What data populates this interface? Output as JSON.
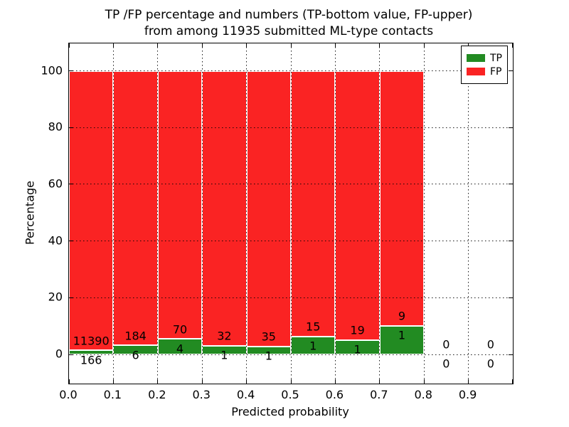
{
  "title": {
    "line1": "TP /FP percentage and numbers (TP-bottom value, FP-upper)",
    "line2": "from among 11935 submitted ML-type contacts"
  },
  "axes": {
    "xlabel": "Predicted probability",
    "ylabel": "Percentage",
    "xtick_labels": [
      "0.0",
      "0.1",
      "0.2",
      "0.3",
      "0.4",
      "0.5",
      "0.6",
      "0.7",
      "0.8",
      "0.9"
    ],
    "xtick_values": [
      0.0,
      0.1,
      0.2,
      0.3,
      0.4,
      0.5,
      0.6,
      0.7,
      0.8,
      0.9
    ],
    "ytick_labels": [
      "0",
      "20",
      "40",
      "60",
      "80",
      "100"
    ],
    "ytick_values": [
      0,
      20,
      40,
      60,
      80,
      100
    ],
    "xlim": [
      0.0,
      1.0
    ],
    "ylim": [
      -10.5,
      110.0
    ],
    "grid": "dotted"
  },
  "legend": {
    "position": "upper-right",
    "entries": [
      {
        "label": "TP",
        "color": "#228B22"
      },
      {
        "label": "FP",
        "color": "#FA2323"
      }
    ]
  },
  "colors": {
    "tp": "#228B22",
    "fp": "#FA2323",
    "bar_edge": "#FFFFFF",
    "background": "#FFFFFF",
    "text": "#000000"
  },
  "chart_data": {
    "type": "bar",
    "stacked": true,
    "bin_width": 0.1,
    "total_submitted": 11935,
    "series_order": [
      "TP bottom",
      "FP top"
    ],
    "bins": [
      {
        "x0": 0.0,
        "x1": 0.1,
        "tp_count": 166,
        "fp_count": 11390,
        "tp_pct": 1.44,
        "fp_pct": 98.56
      },
      {
        "x0": 0.1,
        "x1": 0.2,
        "tp_count": 6,
        "fp_count": 184,
        "tp_pct": 3.16,
        "fp_pct": 96.84
      },
      {
        "x0": 0.2,
        "x1": 0.3,
        "tp_count": 4,
        "fp_count": 70,
        "tp_pct": 5.41,
        "fp_pct": 94.59
      },
      {
        "x0": 0.3,
        "x1": 0.4,
        "tp_count": 1,
        "fp_count": 32,
        "tp_pct": 3.03,
        "fp_pct": 96.97
      },
      {
        "x0": 0.4,
        "x1": 0.5,
        "tp_count": 1,
        "fp_count": 35,
        "tp_pct": 2.78,
        "fp_pct": 97.22
      },
      {
        "x0": 0.5,
        "x1": 0.6,
        "tp_count": 1,
        "fp_count": 15,
        "tp_pct": 6.25,
        "fp_pct": 93.75
      },
      {
        "x0": 0.6,
        "x1": 0.7,
        "tp_count": 1,
        "fp_count": 19,
        "tp_pct": 5.0,
        "fp_pct": 95.0
      },
      {
        "x0": 0.7,
        "x1": 0.8,
        "tp_count": 1,
        "fp_count": 9,
        "tp_pct": 10.0,
        "fp_pct": 90.0
      },
      {
        "x0": 0.8,
        "x1": 0.9,
        "tp_count": 0,
        "fp_count": 0,
        "tp_pct": 0.0,
        "fp_pct": 0.0
      },
      {
        "x0": 0.9,
        "x1": 1.0,
        "tp_count": 0,
        "fp_count": 0,
        "tp_pct": 0.0,
        "fp_pct": 0.0
      }
    ]
  }
}
